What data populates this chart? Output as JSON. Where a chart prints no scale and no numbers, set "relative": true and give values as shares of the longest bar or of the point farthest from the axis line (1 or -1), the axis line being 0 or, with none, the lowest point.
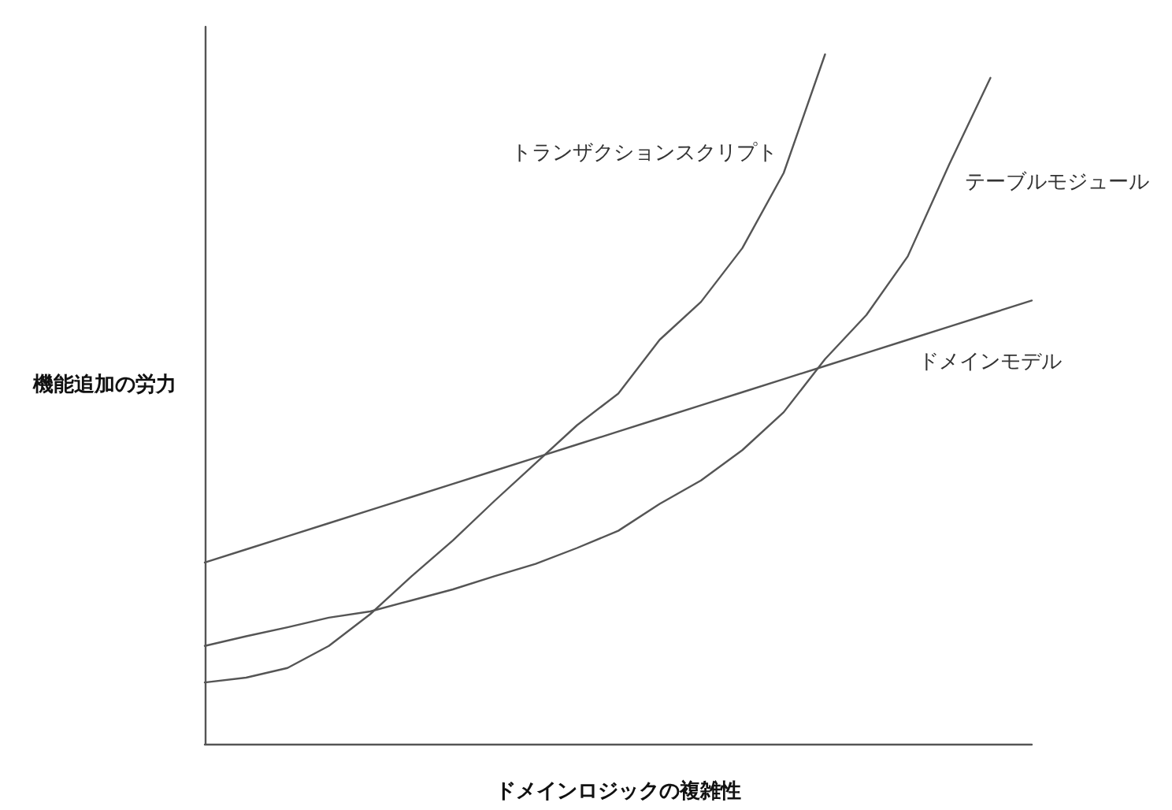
{
  "chart_data": {
    "type": "line",
    "relative": true,
    "xlabel": "ドメインロジックの複雑性",
    "ylabel": "機能追加の労力",
    "categories": [
      null,
      null,
      null,
      null,
      null,
      null,
      null,
      null,
      null,
      null,
      null,
      null,
      null,
      null,
      null,
      null,
      null,
      null,
      null,
      null,
      null
    ],
    "grid": false,
    "legend": false,
    "marker": "none",
    "line_style": "solid",
    "series": [
      {
        "name": "トランザクションスクリプト",
        "color": "#555555",
        "values": [
          0.089,
          0.096,
          0.11,
          0.142,
          0.188,
          0.243,
          0.295,
          0.352,
          0.407,
          0.462,
          0.508,
          0.586,
          0.641,
          0.719,
          0.828,
          1,
          null,
          null,
          null,
          null,
          null
        ]
      },
      {
        "name": "テーブルモジュール",
        "color": "#555555",
        "values": [
          0.142,
          0.156,
          0.169,
          0.183,
          0.192,
          0.208,
          0.224,
          0.243,
          0.261,
          0.284,
          0.309,
          0.348,
          0.382,
          0.426,
          0.481,
          0.558,
          0.622,
          0.707,
          0.84,
          0.966,
          null
        ]
      },
      {
        "name": "ドメインモデル",
        "color": "#555555",
        "values": [
          0.263,
          0.282,
          0.301,
          0.32,
          0.339,
          0.358,
          0.377,
          0.396,
          0.415,
          0.434,
          0.453,
          0.472,
          0.491,
          0.51,
          0.529,
          0.548,
          0.567,
          0.586,
          0.605,
          0.624,
          0.643
        ]
      }
    ]
  }
}
